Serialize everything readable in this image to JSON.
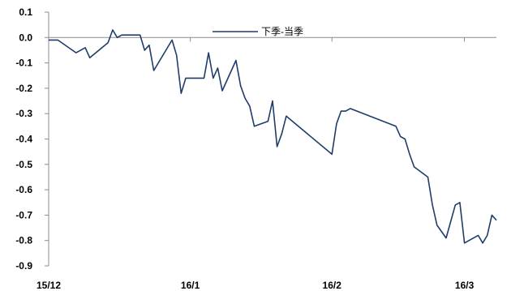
{
  "chart_data": {
    "type": "line",
    "xlabel": "",
    "ylabel": "",
    "ylim": [
      -0.9,
      0.1
    ],
    "yticks": [
      0.1,
      0.0,
      -0.1,
      -0.2,
      -0.3,
      -0.4,
      -0.5,
      -0.6,
      -0.7,
      -0.8,
      -0.9
    ],
    "ytick_labels": [
      "0.1",
      "0.0",
      "-0.1",
      "-0.2",
      "-0.3",
      "-0.4",
      "-0.5",
      "-0.6",
      "-0.7",
      "-0.8",
      "-0.9"
    ],
    "xtick_labels": [
      "15/12",
      "16/1",
      "16/2",
      "16/3"
    ],
    "xtick_dates": [
      "2015-12-01",
      "2016-01-01",
      "2016-02-01",
      "2016-03-01"
    ],
    "xlim": [
      "2015-12-01",
      "2016-03-08"
    ],
    "legend": {
      "position": "top-center"
    },
    "grid": false,
    "series": [
      {
        "name": "下季-当季",
        "color": "#1f3c6b",
        "points": [
          [
            "2015-12-01",
            -0.01
          ],
          [
            "2015-12-03",
            -0.01
          ],
          [
            "2015-12-07",
            -0.06
          ],
          [
            "2015-12-09",
            -0.04
          ],
          [
            "2015-12-10",
            -0.08
          ],
          [
            "2015-12-14",
            -0.02
          ],
          [
            "2015-12-15",
            0.03
          ],
          [
            "2015-12-16",
            0.0
          ],
          [
            "2015-12-17",
            0.01
          ],
          [
            "2015-12-21",
            0.01
          ],
          [
            "2015-12-22",
            -0.05
          ],
          [
            "2015-12-23",
            -0.03
          ],
          [
            "2015-12-24",
            -0.13
          ],
          [
            "2015-12-25",
            -0.1
          ],
          [
            "2015-12-28",
            -0.01
          ],
          [
            "2015-12-29",
            -0.07
          ],
          [
            "2015-12-30",
            -0.22
          ],
          [
            "2015-12-31",
            -0.16
          ],
          [
            "2016-01-04",
            -0.16
          ],
          [
            "2016-01-05",
            -0.06
          ],
          [
            "2016-01-06",
            -0.16
          ],
          [
            "2016-01-07",
            -0.12
          ],
          [
            "2016-01-08",
            -0.21
          ],
          [
            "2016-01-11",
            -0.09
          ],
          [
            "2016-01-12",
            -0.19
          ],
          [
            "2016-01-13",
            -0.24
          ],
          [
            "2016-01-14",
            -0.27
          ],
          [
            "2016-01-15",
            -0.35
          ],
          [
            "2016-01-18",
            -0.33
          ],
          [
            "2016-01-19",
            -0.25
          ],
          [
            "2016-01-20",
            -0.43
          ],
          [
            "2016-01-21",
            -0.38
          ],
          [
            "2016-01-22",
            -0.31
          ],
          [
            "2016-02-01",
            -0.46
          ],
          [
            "2016-02-02",
            -0.34
          ],
          [
            "2016-02-03",
            -0.29
          ],
          [
            "2016-02-04",
            -0.29
          ],
          [
            "2016-02-05",
            -0.28
          ],
          [
            "2016-02-15",
            -0.35
          ],
          [
            "2016-02-16",
            -0.39
          ],
          [
            "2016-02-17",
            -0.4
          ],
          [
            "2016-02-18",
            -0.46
          ],
          [
            "2016-02-19",
            -0.51
          ],
          [
            "2016-02-22",
            -0.55
          ],
          [
            "2016-02-23",
            -0.66
          ],
          [
            "2016-02-24",
            -0.74
          ],
          [
            "2016-02-26",
            -0.79
          ],
          [
            "2016-02-28",
            -0.66
          ],
          [
            "2016-02-29",
            -0.65
          ],
          [
            "2016-03-01",
            -0.81
          ],
          [
            "2016-03-03",
            -0.79
          ],
          [
            "2016-03-04",
            -0.78
          ],
          [
            "2016-03-05",
            -0.81
          ],
          [
            "2016-03-06",
            -0.78
          ],
          [
            "2016-03-07",
            -0.7
          ],
          [
            "2016-03-08",
            -0.72
          ]
        ]
      }
    ]
  }
}
